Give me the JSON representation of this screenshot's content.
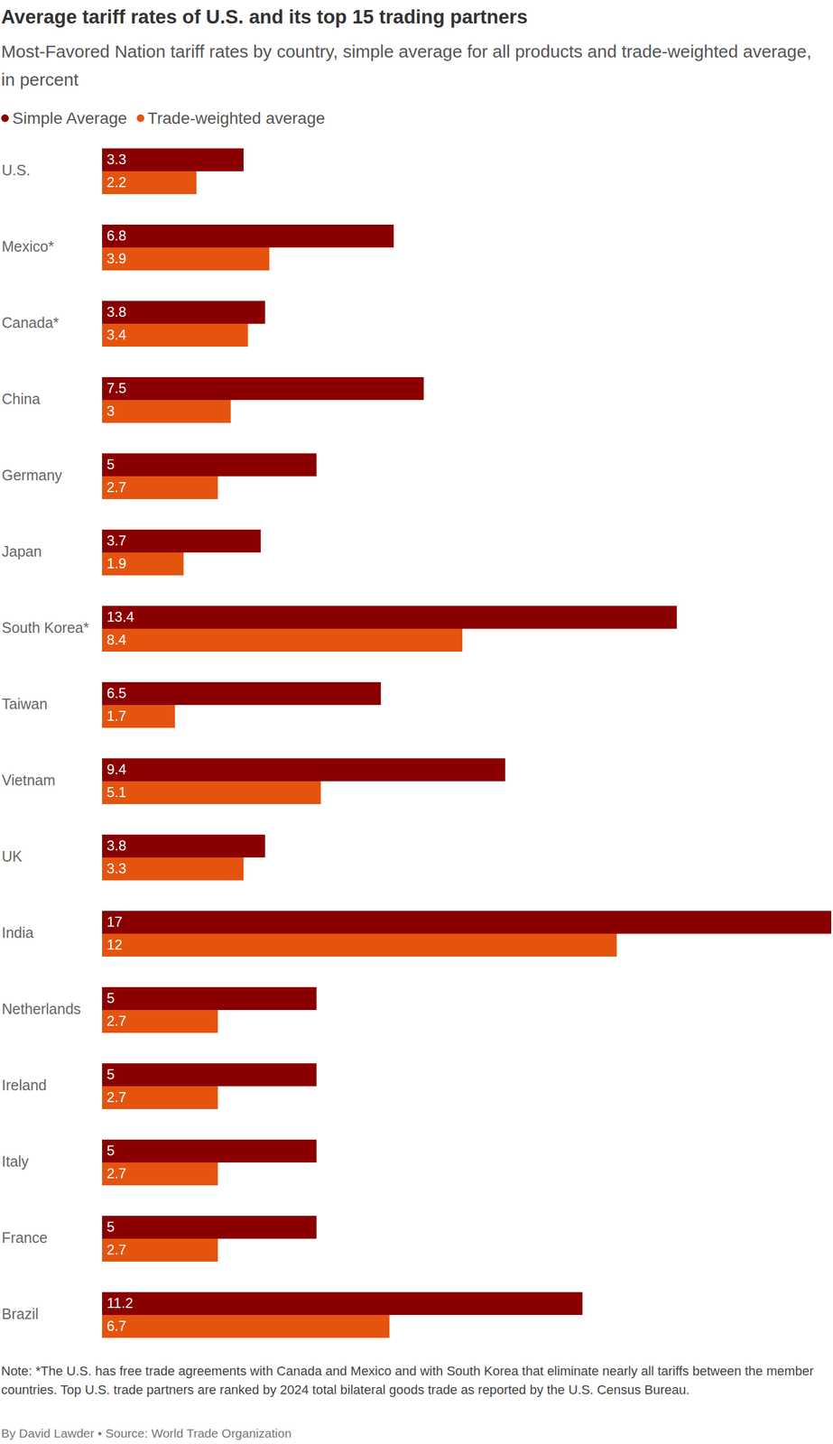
{
  "chart_data": {
    "type": "bar",
    "orientation": "horizontal",
    "title": "Average tariff rates of U.S. and its top 15 trading partners",
    "subtitle": "Most-Favored Nation tariff rates by country, simple average for all products and trade-weighted average, in percent",
    "categories": [
      "U.S.",
      "Mexico*",
      "Canada*",
      "China",
      "Germany",
      "Japan",
      "South Korea*",
      "Taiwan",
      "Vietnam",
      "UK",
      "India",
      "Netherlands",
      "Ireland",
      "Italy",
      "France",
      "Brazil"
    ],
    "series": [
      {
        "name": "Simple Average",
        "color": "#8a0000",
        "values": [
          3.3,
          6.8,
          3.8,
          7.5,
          5,
          3.7,
          13.4,
          6.5,
          9.4,
          3.8,
          17,
          5,
          5,
          5,
          5,
          11.2
        ]
      },
      {
        "name": "Trade-weighted average",
        "color": "#e5540f",
        "values": [
          2.2,
          3.9,
          3.4,
          3,
          2.7,
          1.9,
          8.4,
          1.7,
          5.1,
          3.3,
          12,
          2.7,
          2.7,
          2.7,
          2.7,
          6.7
        ]
      }
    ],
    "xlim": [
      0,
      17
    ],
    "data_labels": true,
    "tick_labels": "y",
    "grid": false,
    "legend": "top-left",
    "note": "Note: *The U.S. has free trade agreements with Canada and Mexico and with South Korea that eliminate nearly all tariffs between the member countries. Top U.S. trade partners are ranked by 2024 total bilateral goods trade as reported by the U.S. Census Bureau.",
    "byline": "By David Lawder • Source: World Trade Organization"
  }
}
